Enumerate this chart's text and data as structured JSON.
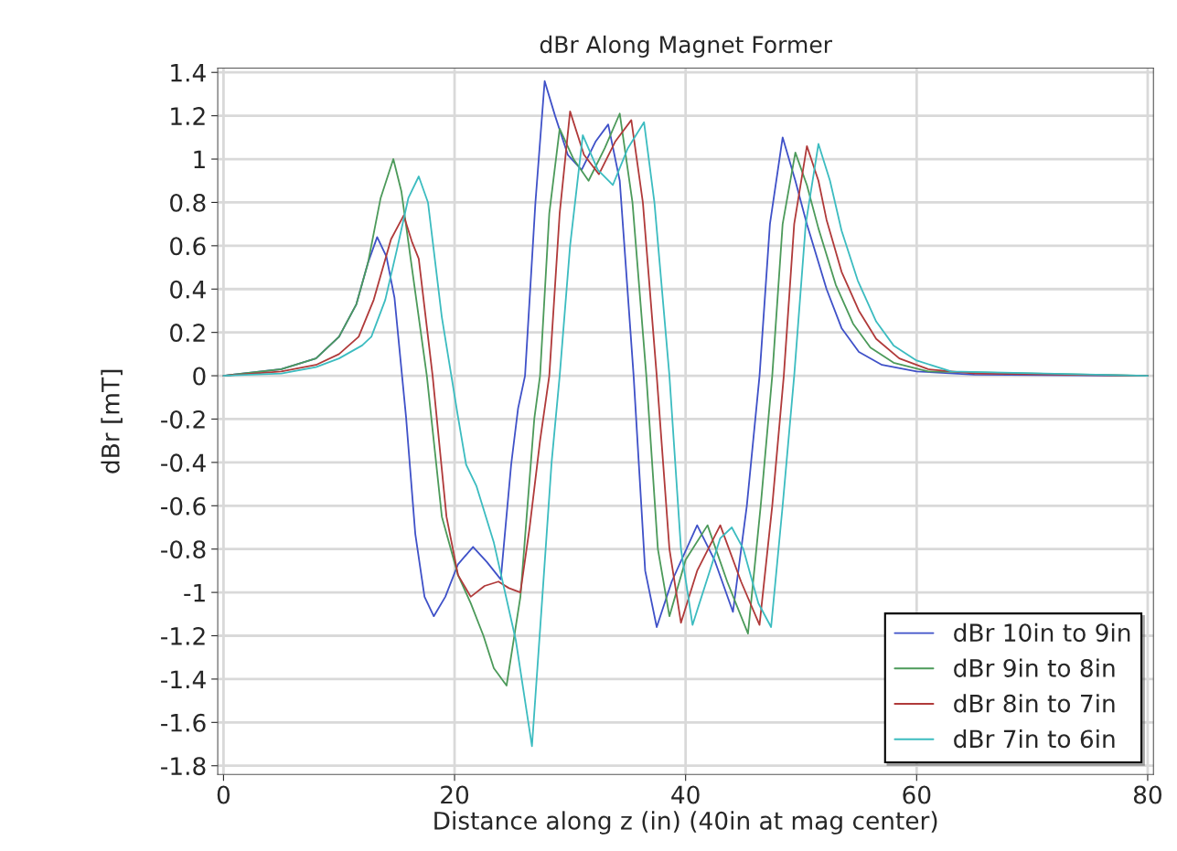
{
  "chart_data": {
    "type": "line",
    "title": "dBr Along Magnet Former",
    "xlabel": "Distance along z (in) (40in at mag center)",
    "ylabel": "dBr [mT]",
    "xlim": [
      -0.5,
      80.5
    ],
    "ylim": [
      -1.84,
      1.42
    ],
    "xticks": [
      0,
      20,
      40,
      60,
      80
    ],
    "yticks": [
      -1.8,
      -1.6,
      -1.4,
      -1.2,
      -1,
      -0.8,
      -0.6,
      -0.4,
      -0.2,
      0,
      0.2,
      0.4,
      0.6,
      0.8,
      1,
      1.2,
      1.4
    ],
    "grid": true,
    "legend": "bottom right",
    "marker": "none",
    "line_style": "solid",
    "series": [
      {
        "name": "dBr 10in to 9in",
        "color": "#3f51c8",
        "x": [
          0,
          5,
          8,
          10,
          11.5,
          12.5,
          13.3,
          14.1,
          14.8,
          15.8,
          16.6,
          17.4,
          18.2,
          19.2,
          20.3,
          21.6,
          22.8,
          24.0,
          24.9,
          25.5,
          26.1,
          27.0,
          27.8,
          28.7,
          29.8,
          31.0,
          32.2,
          33.3,
          34.3,
          35.5,
          36.5,
          37.5,
          38.8,
          41.0,
          42.5,
          44.1,
          45.3,
          46.4,
          47.3,
          48.4,
          49.5,
          50.5,
          52.2,
          53.5,
          55,
          57,
          60,
          65,
          80
        ],
        "values": [
          0,
          0.03,
          0.08,
          0.18,
          0.33,
          0.52,
          0.64,
          0.55,
          0.36,
          -0.19,
          -0.73,
          -1.02,
          -1.11,
          -1.02,
          -0.87,
          -0.79,
          -0.86,
          -0.94,
          -0.41,
          -0.15,
          0,
          0.8,
          1.36,
          1.2,
          1.02,
          0.95,
          1.08,
          1.16,
          0.9,
          0,
          -0.9,
          -1.16,
          -0.95,
          -0.69,
          -0.85,
          -1.09,
          -0.6,
          0,
          0.7,
          1.1,
          0.9,
          0.7,
          0.4,
          0.22,
          0.11,
          0.05,
          0.02,
          0.005,
          0
        ]
      },
      {
        "name": "dBr 9in to 8in",
        "color": "#4c9a5a",
        "x": [
          0,
          5,
          8,
          10,
          11.5,
          12.5,
          13.6,
          14.7,
          15.4,
          16.2,
          17.6,
          18.9,
          20.3,
          21.4,
          22.5,
          23.4,
          24.5,
          25.7,
          26.9,
          27.4,
          28.2,
          29.1,
          30.3,
          31.6,
          33.0,
          34.3,
          35.4,
          36.6,
          37.6,
          38.6,
          40.0,
          41.9,
          43.6,
          45.4,
          46.5,
          47.5,
          48.4,
          49.5,
          50.5,
          51.5,
          53,
          54.5,
          56,
          58,
          61,
          80
        ],
        "values": [
          0,
          0.03,
          0.08,
          0.18,
          0.33,
          0.52,
          0.82,
          1.0,
          0.85,
          0.54,
          0,
          -0.65,
          -0.92,
          -1.05,
          -1.2,
          -1.35,
          -1.43,
          -1.02,
          -0.2,
          0,
          0.75,
          1.14,
          1.0,
          0.9,
          1.05,
          1.21,
          0.8,
          0,
          -0.8,
          -1.11,
          -0.85,
          -0.69,
          -0.95,
          -1.19,
          -0.6,
          0,
          0.7,
          1.03,
          0.88,
          0.68,
          0.42,
          0.24,
          0.13,
          0.06,
          0.02,
          0
        ]
      },
      {
        "name": "dBr 8in to 7in",
        "color": "#b03a3a",
        "x": [
          0,
          5,
          8,
          10,
          11.7,
          13,
          14.5,
          15.6,
          16.3,
          16.9,
          18.1,
          19.3,
          20.3,
          21.4,
          22.6,
          23.8,
          24.7,
          25.7,
          26.5,
          27.4,
          28.2,
          29.1,
          30.0,
          31.2,
          32.5,
          33.9,
          35.3,
          36.3,
          37.5,
          38.6,
          39.6,
          41.0,
          43.0,
          44.8,
          46.4,
          47.5,
          48.5,
          49.4,
          50.5,
          51.5,
          52.2,
          53.5,
          55,
          56.5,
          58.5,
          61,
          65,
          80
        ],
        "values": [
          0,
          0.02,
          0.05,
          0.1,
          0.18,
          0.35,
          0.63,
          0.74,
          0.62,
          0.54,
          0,
          -0.65,
          -0.92,
          -1.02,
          -0.97,
          -0.95,
          -0.98,
          -1.0,
          -0.7,
          -0.3,
          0,
          0.75,
          1.22,
          1.02,
          0.93,
          1.08,
          1.18,
          0.8,
          0,
          -0.8,
          -1.14,
          -0.9,
          -0.69,
          -0.95,
          -1.15,
          -0.6,
          0,
          0.7,
          1.06,
          0.9,
          0.72,
          0.48,
          0.3,
          0.17,
          0.08,
          0.03,
          0.01,
          0
        ]
      },
      {
        "name": "dBr 7in to 6in",
        "color": "#3cbcc0",
        "x": [
          0,
          5,
          8,
          10,
          12,
          12.8,
          14,
          15,
          16,
          16.9,
          17.7,
          18.9,
          20.3,
          21.0,
          21.9,
          23.4,
          25.3,
          26.7,
          27.6,
          28.4,
          29.1,
          30,
          31.1,
          32.4,
          33.7,
          35,
          36.4,
          37.3,
          38.6,
          39.6,
          40.6,
          41.8,
          43,
          44,
          45,
          46.3,
          47.4,
          48.4,
          49.4,
          50.4,
          51.5,
          52.5,
          53.5,
          54.9,
          56.5,
          58,
          60,
          63,
          80
        ],
        "values": [
          0,
          0.01,
          0.04,
          0.08,
          0.14,
          0.18,
          0.35,
          0.58,
          0.82,
          0.92,
          0.8,
          0.27,
          -0.19,
          -0.41,
          -0.51,
          -0.77,
          -1.22,
          -1.71,
          -1.02,
          -0.4,
          0,
          0.6,
          1.11,
          0.95,
          0.88,
          1.05,
          1.17,
          0.8,
          0,
          -0.8,
          -1.15,
          -0.95,
          -0.75,
          -0.7,
          -0.8,
          -1.05,
          -1.16,
          -0.6,
          0,
          0.7,
          1.07,
          0.9,
          0.67,
          0.44,
          0.25,
          0.14,
          0.07,
          0.02,
          0
        ]
      }
    ]
  }
}
